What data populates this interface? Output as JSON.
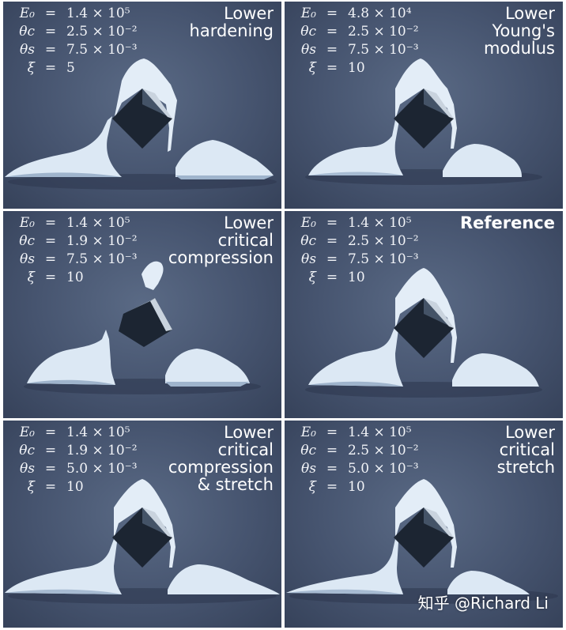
{
  "panels": [
    {
      "params": [
        {
          "sym": "E₀",
          "val": "1.4 × 10⁵"
        },
        {
          "sym": "θc",
          "val": "2.5 × 10⁻²"
        },
        {
          "sym": "θs",
          "val": "7.5 × 10⁻³"
        },
        {
          "sym": "ξ",
          "val": "5"
        }
      ],
      "caption": "Lower\nhardening"
    },
    {
      "params": [
        {
          "sym": "E₀",
          "val": "4.8 × 10⁴"
        },
        {
          "sym": "θc",
          "val": "2.5 × 10⁻²"
        },
        {
          "sym": "θs",
          "val": "7.5 × 10⁻³"
        },
        {
          "sym": "ξ",
          "val": "10"
        }
      ],
      "caption": "Lower\nYoung's\nmodulus"
    },
    {
      "params": [
        {
          "sym": "E₀",
          "val": "1.4 × 10⁵"
        },
        {
          "sym": "θc",
          "val": "1.9 × 10⁻²"
        },
        {
          "sym": "θs",
          "val": "7.5 × 10⁻³"
        },
        {
          "sym": "ξ",
          "val": "10"
        }
      ],
      "caption": "Lower\ncritical\ncompression"
    },
    {
      "params": [
        {
          "sym": "E₀",
          "val": "1.4 × 10⁵"
        },
        {
          "sym": "θc",
          "val": "2.5 × 10⁻²"
        },
        {
          "sym": "θs",
          "val": "7.5 × 10⁻³"
        },
        {
          "sym": "ξ",
          "val": "10"
        }
      ],
      "caption": "Reference"
    },
    {
      "params": [
        {
          "sym": "E₀",
          "val": "1.4 × 10⁵"
        },
        {
          "sym": "θc",
          "val": "1.9 × 10⁻²"
        },
        {
          "sym": "θs",
          "val": "5.0 × 10⁻³"
        },
        {
          "sym": "ξ",
          "val": "10"
        }
      ],
      "caption": "Lower\ncritical\ncompression\n& stretch"
    },
    {
      "params": [
        {
          "sym": "E₀",
          "val": "1.4 × 10⁵"
        },
        {
          "sym": "θc",
          "val": "2.5 × 10⁻²"
        },
        {
          "sym": "θs",
          "val": "5.0 × 10⁻³"
        },
        {
          "sym": "ξ",
          "val": "10"
        }
      ],
      "caption": "Lower\ncritical\nstretch"
    }
  ],
  "watermark": "知乎 @Richard Li",
  "colors": {
    "background": "#46546f",
    "snow": "#dce8f4",
    "snow_shadow": "#8fa6c2",
    "cube": "#1c2532"
  }
}
